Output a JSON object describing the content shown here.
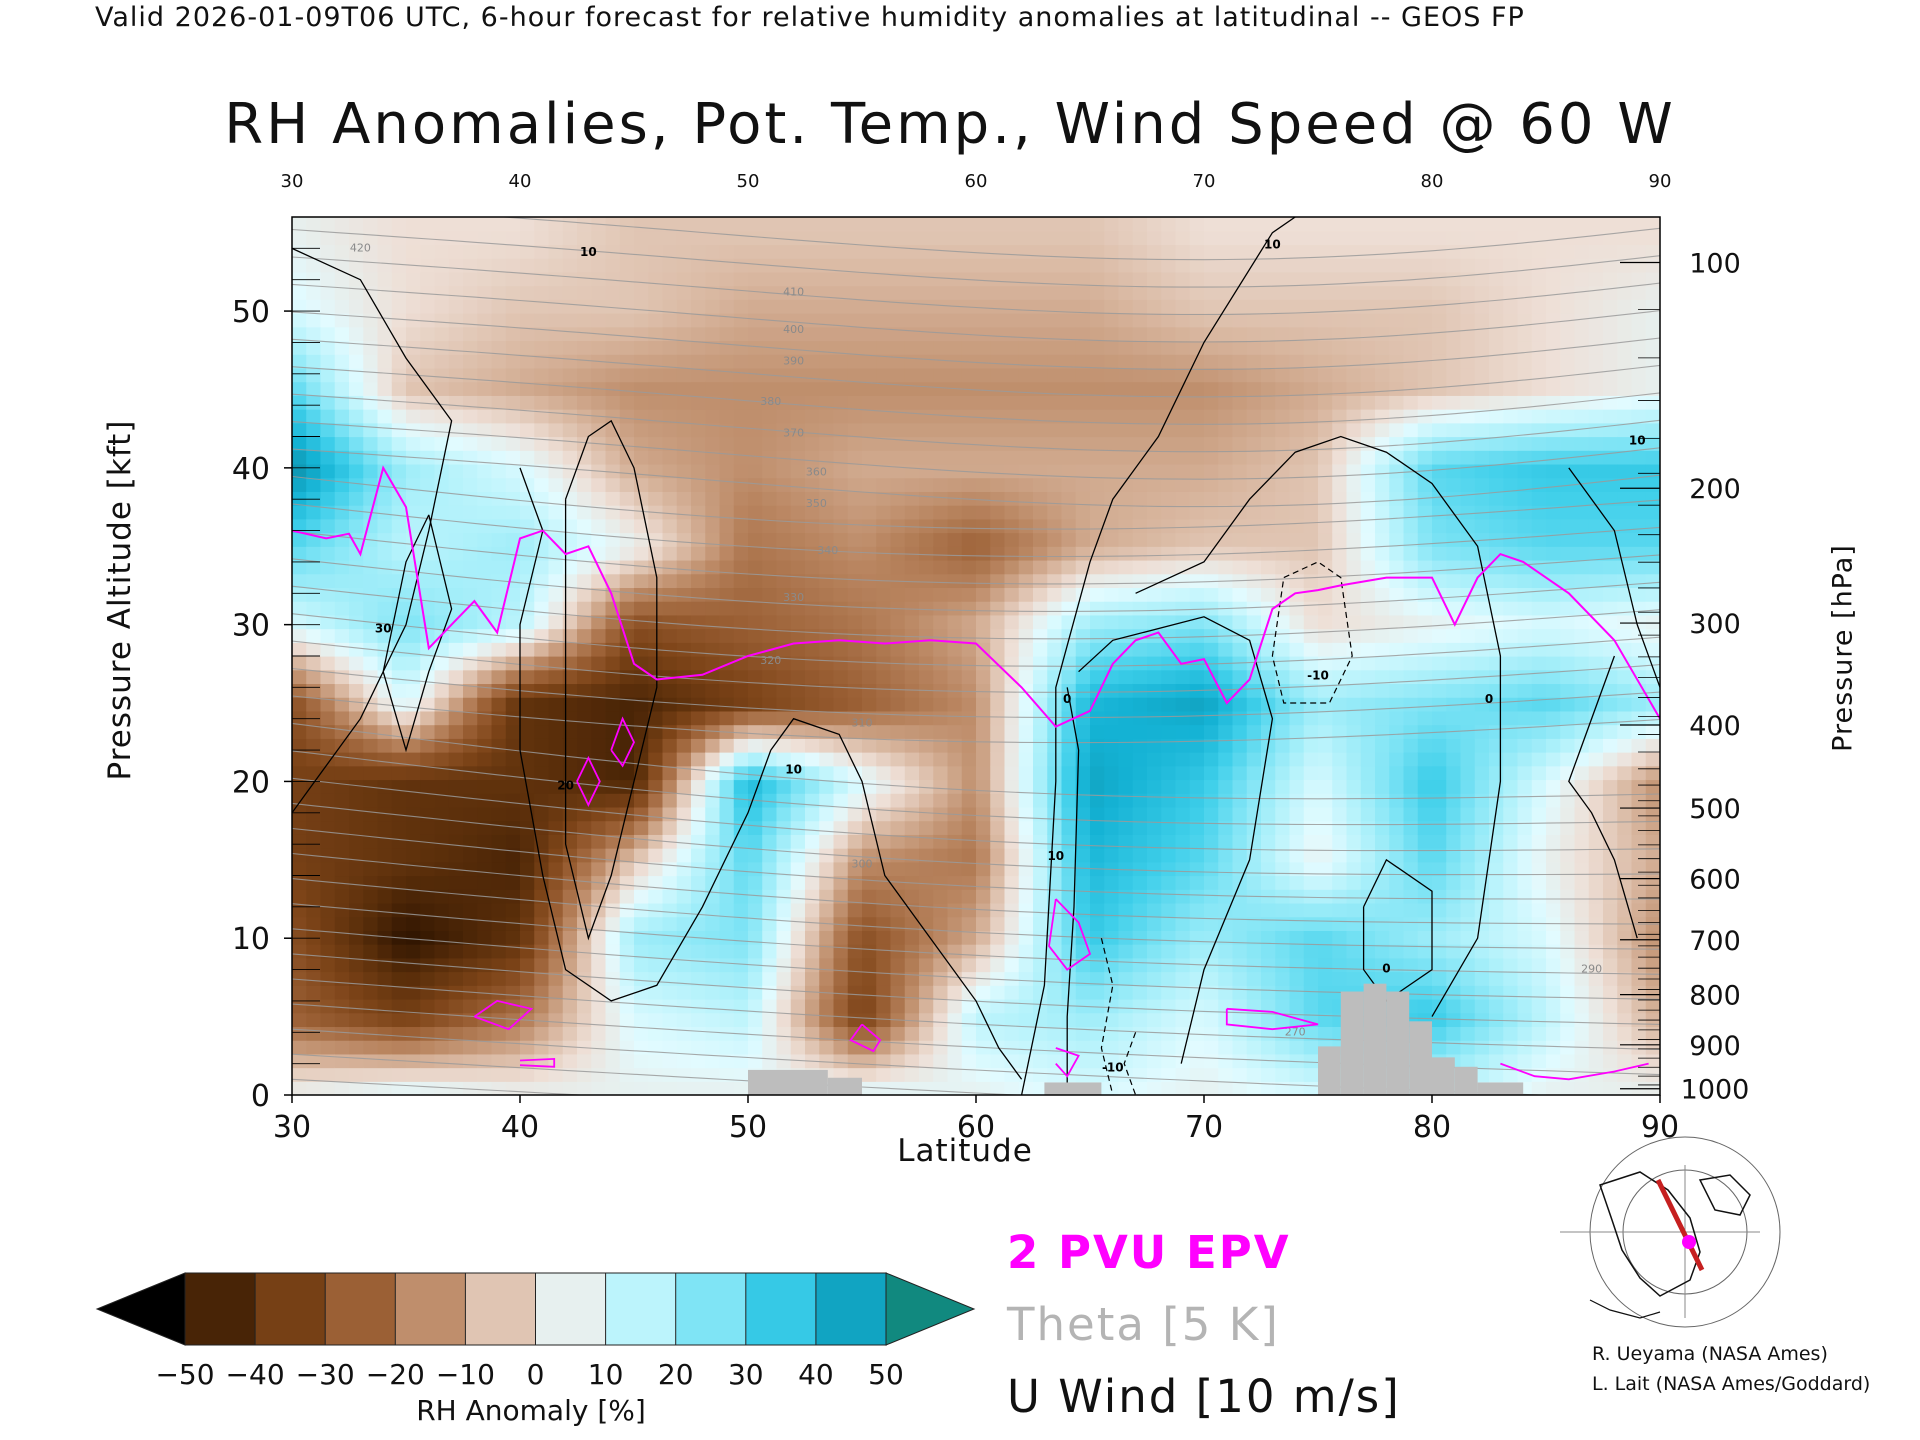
{
  "header": "Valid 2026-01-09T06 UTC, 6-hour forecast for relative humidity anomalies at latitudinal -- GEOS FP",
  "title": "RH Anomalies, Pot. Temp., Wind Speed @ 60 W",
  "legend": {
    "epv": "2 PVU EPV",
    "theta": "Theta [5 K]",
    "u_wind": "U Wind [10 m/s]"
  },
  "credits": [
    "R. Ueyama (NASA Ames)",
    "L. Lait (NASA Ames/Goddard)"
  ],
  "colors": {
    "epv": "#ff00ff",
    "theta": "#a0a0a0",
    "u_wind": "#000000",
    "terrain": "#bdbdbd"
  },
  "chart_data": {
    "type": "heatmap",
    "title": "RH Anomalies, Pot. Temp., Wind Speed @ 60 W",
    "xlabel": "Latitude",
    "ylabel": "Pressure Altitude [kft]",
    "y2label": "Pressure [hPa]",
    "xlim": [
      30,
      90
    ],
    "ylim": [
      0,
      56
    ],
    "x_ticks": [
      30,
      40,
      50,
      60,
      70,
      80,
      90
    ],
    "y_ticks": [
      0,
      10,
      20,
      30,
      40,
      50
    ],
    "pressure_ticks": [
      {
        "p": 100,
        "kft": 53.1
      },
      {
        "p": 200,
        "kft": 38.7
      },
      {
        "p": 300,
        "kft": 30.1
      },
      {
        "p": 400,
        "kft": 23.6
      },
      {
        "p": 500,
        "kft": 18.3
      },
      {
        "p": 600,
        "kft": 13.8
      },
      {
        "p": 700,
        "kft": 9.9
      },
      {
        "p": 800,
        "kft": 6.4
      },
      {
        "p": 900,
        "kft": 3.2
      },
      {
        "p": 1000,
        "kft": 0.4
      }
    ],
    "colorbar": {
      "label": "RH Anomaly [%]",
      "ticks": [
        -50,
        -40,
        -30,
        -20,
        -10,
        0,
        10,
        20,
        30,
        40,
        50
      ],
      "colors": [
        "#2e1400",
        "#5a2e0a",
        "#7d4418",
        "#9b6035",
        "#b98560",
        "#d7b49c",
        "#eedfd6",
        "#e2fbff",
        "#b3f2fb",
        "#7fe4f5",
        "#3fcfea",
        "#14b2d4",
        "#0d8fa8"
      ],
      "extend": "both",
      "low_color": "#000000",
      "high_color": "#11897f"
    },
    "rh_anomaly_grid": {
      "lat": [
        30,
        35,
        40,
        45,
        50,
        55,
        60,
        65,
        70,
        75,
        80,
        85,
        90
      ],
      "kft": [
        0,
        5,
        10,
        15,
        20,
        25,
        30,
        35,
        40,
        45,
        50,
        55
      ],
      "values": [
        [
          5,
          10,
          5,
          5,
          5,
          10,
          5,
          10,
          5,
          10,
          15,
          5,
          5
        ],
        [
          -25,
          -35,
          -20,
          10,
          15,
          -35,
          15,
          20,
          10,
          30,
          35,
          15,
          -10
        ],
        [
          -30,
          -50,
          -40,
          20,
          25,
          -30,
          -10,
          35,
          20,
          30,
          20,
          10,
          -15
        ],
        [
          -35,
          -40,
          -45,
          -5,
          30,
          -15,
          -20,
          40,
          30,
          5,
          30,
          5,
          -10
        ],
        [
          -35,
          -40,
          -40,
          -45,
          40,
          10,
          -15,
          45,
          35,
          10,
          35,
          10,
          -15
        ],
        [
          -30,
          10,
          -40,
          -45,
          -35,
          -25,
          -15,
          40,
          45,
          20,
          25,
          30,
          20
        ],
        [
          10,
          25,
          15,
          -30,
          -25,
          -20,
          -10,
          20,
          25,
          0,
          5,
          10,
          5
        ],
        [
          30,
          15,
          20,
          5,
          -20,
          -15,
          -25,
          -10,
          -5,
          -5,
          25,
          30,
          30
        ],
        [
          50,
          20,
          10,
          -10,
          -15,
          -10,
          -10,
          -10,
          -10,
          -5,
          30,
          35,
          35
        ],
        [
          30,
          -5,
          -10,
          -15,
          -15,
          -15,
          -15,
          -15,
          -15,
          -10,
          -5,
          0,
          5
        ],
        [
          10,
          0,
          -5,
          -5,
          -10,
          -10,
          -10,
          -10,
          -5,
          -5,
          -5,
          0,
          5
        ],
        [
          5,
          0,
          0,
          -5,
          -5,
          -5,
          -5,
          -5,
          0,
          0,
          0,
          0,
          0
        ]
      ]
    },
    "theta_contours": {
      "interval_K": 5,
      "labels": [
        270,
        290,
        300,
        310,
        320,
        330,
        340,
        350,
        360,
        370,
        380,
        390,
        400,
        410,
        420
      ]
    },
    "u_wind_contours": {
      "interval_ms": 10,
      "labels": [
        "-10",
        "0",
        "10",
        "20",
        "30"
      ]
    },
    "epv_2pvu": {
      "lat": [
        30,
        31.5,
        32.5,
        33,
        34,
        35,
        36,
        37,
        38,
        39,
        40,
        41,
        42,
        43,
        44,
        45,
        46,
        48,
        50,
        52,
        54,
        56,
        58,
        60,
        62,
        63.5,
        65,
        66,
        67,
        68,
        69,
        70,
        71,
        72,
        73,
        74,
        75,
        76,
        78,
        80,
        81,
        82,
        83,
        84,
        86,
        88,
        90
      ],
      "kft": [
        36.0,
        35.5,
        35.8,
        34.5,
        40.0,
        37.5,
        28.5,
        30.0,
        31.5,
        29.5,
        35.5,
        36.0,
        34.5,
        35.0,
        32.0,
        27.5,
        26.5,
        26.8,
        28.0,
        28.8,
        29.0,
        28.8,
        29.0,
        28.8,
        26.0,
        23.5,
        24.5,
        27.5,
        29.0,
        29.5,
        27.5,
        27.8,
        25.0,
        26.5,
        31.0,
        32.0,
        32.2,
        32.5,
        33.0,
        33.0,
        30.0,
        33.0,
        34.5,
        34.0,
        32.0,
        29.0,
        24.0
      ]
    },
    "terrain": [
      {
        "lat": [
          50,
          53.5
        ],
        "kft": 1.6
      },
      {
        "lat": [
          53.5,
          55
        ],
        "kft": 1.1
      },
      {
        "lat": [
          63,
          65.5
        ],
        "kft": 0.8
      },
      {
        "lat": [
          75,
          76
        ],
        "kft": 3.1
      },
      {
        "lat": [
          76,
          77
        ],
        "kft": 6.6
      },
      {
        "lat": [
          77,
          78
        ],
        "kft": 7.1
      },
      {
        "lat": [
          78,
          79
        ],
        "kft": 6.6
      },
      {
        "lat": [
          79,
          80
        ],
        "kft": 4.7
      },
      {
        "lat": [
          80,
          81
        ],
        "kft": 2.4
      },
      {
        "lat": [
          81,
          82
        ],
        "kft": 1.8
      },
      {
        "lat": [
          82,
          84
        ],
        "kft": 0.8
      }
    ]
  }
}
